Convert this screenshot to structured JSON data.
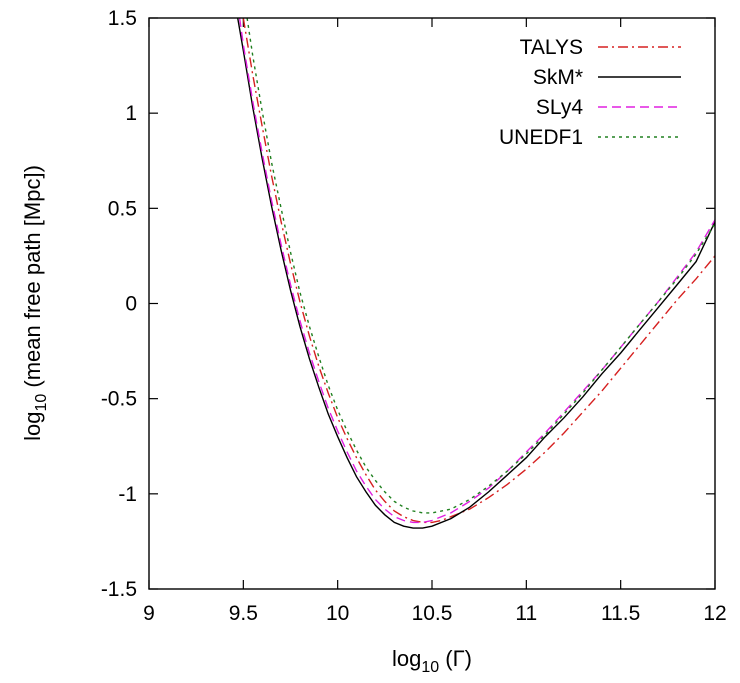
{
  "chart_data": {
    "type": "line",
    "xlabel": "log10 (Γ)",
    "ylabel": "log10 (mean free path [Mpc])",
    "xlim": [
      9,
      12
    ],
    "ylim": [
      -1.5,
      1.5
    ],
    "xticks": [
      "9",
      "9.5",
      "10",
      "10.5",
      "11",
      "11.5",
      "12"
    ],
    "yticks": [
      "-1.5",
      "-1",
      "-0.5",
      "0",
      "0.5",
      "1",
      "1.5"
    ],
    "legend_position": "top-right",
    "series": [
      {
        "name": "TALYS",
        "color": "#d62020",
        "dash": "dash-dot",
        "x": [
          9.5,
          9.55,
          9.6,
          9.65,
          9.7,
          9.75,
          9.8,
          9.85,
          9.9,
          9.95,
          10.0,
          10.05,
          10.1,
          10.15,
          10.2,
          10.25,
          10.3,
          10.35,
          10.4,
          10.45,
          10.5,
          10.55,
          10.6,
          10.7,
          10.8,
          10.9,
          11.0,
          11.1,
          11.2,
          11.3,
          11.4,
          11.5,
          11.6,
          11.7,
          11.8,
          11.9,
          12.0
        ],
        "y": [
          1.5,
          1.2,
          0.93,
          0.67,
          0.43,
          0.21,
          0.01,
          -0.17,
          -0.33,
          -0.47,
          -0.6,
          -0.71,
          -0.81,
          -0.9,
          -0.98,
          -1.04,
          -1.09,
          -1.12,
          -1.14,
          -1.15,
          -1.15,
          -1.14,
          -1.12,
          -1.08,
          -1.02,
          -0.95,
          -0.87,
          -0.78,
          -0.68,
          -0.57,
          -0.46,
          -0.34,
          -0.22,
          -0.1,
          0.02,
          0.13,
          0.25
        ]
      },
      {
        "name": "SkM*",
        "color": "#000000",
        "dash": "solid",
        "x": [
          9.47,
          9.5,
          9.55,
          9.6,
          9.65,
          9.7,
          9.75,
          9.8,
          9.85,
          9.9,
          9.95,
          10.0,
          10.05,
          10.1,
          10.15,
          10.2,
          10.25,
          10.3,
          10.35,
          10.4,
          10.45,
          10.5,
          10.6,
          10.7,
          10.8,
          10.9,
          11.0,
          11.1,
          11.2,
          11.3,
          11.4,
          11.5,
          11.6,
          11.7,
          11.8,
          11.9,
          12.0
        ],
        "y": [
          1.5,
          1.33,
          1.03,
          0.76,
          0.51,
          0.28,
          0.07,
          -0.12,
          -0.29,
          -0.44,
          -0.58,
          -0.7,
          -0.81,
          -0.91,
          -0.99,
          -1.06,
          -1.11,
          -1.15,
          -1.17,
          -1.18,
          -1.18,
          -1.17,
          -1.13,
          -1.07,
          -0.99,
          -0.9,
          -0.81,
          -0.7,
          -0.6,
          -0.49,
          -0.37,
          -0.26,
          -0.14,
          -0.02,
          0.1,
          0.22,
          0.43
        ]
      },
      {
        "name": "SLy4",
        "color": "#e020e0",
        "dash": "dashed",
        "x": [
          9.48,
          9.5,
          9.55,
          9.6,
          9.65,
          9.7,
          9.75,
          9.8,
          9.85,
          9.9,
          9.95,
          10.0,
          10.05,
          10.1,
          10.15,
          10.2,
          10.25,
          10.3,
          10.35,
          10.4,
          10.45,
          10.5,
          10.6,
          10.7,
          10.8,
          10.9,
          11.0,
          11.1,
          11.2,
          11.3,
          11.4,
          11.5,
          11.6,
          11.7,
          11.8,
          11.9,
          12.0
        ],
        "y": [
          1.5,
          1.36,
          1.06,
          0.79,
          0.54,
          0.31,
          0.1,
          -0.09,
          -0.26,
          -0.41,
          -0.55,
          -0.67,
          -0.78,
          -0.88,
          -0.96,
          -1.03,
          -1.08,
          -1.12,
          -1.14,
          -1.15,
          -1.15,
          -1.14,
          -1.1,
          -1.04,
          -0.97,
          -0.88,
          -0.78,
          -0.68,
          -0.57,
          -0.46,
          -0.35,
          -0.23,
          -0.11,
          0.01,
          0.14,
          0.27,
          0.44
        ]
      },
      {
        "name": "UNEDF1",
        "color": "#208020",
        "dash": "dotted",
        "x": [
          9.52,
          9.55,
          9.6,
          9.65,
          9.7,
          9.75,
          9.8,
          9.85,
          9.9,
          9.95,
          10.0,
          10.05,
          10.1,
          10.15,
          10.2,
          10.25,
          10.3,
          10.35,
          10.4,
          10.45,
          10.5,
          10.6,
          10.7,
          10.8,
          10.9,
          11.0,
          11.1,
          11.2,
          11.3,
          11.4,
          11.5,
          11.6,
          11.7,
          11.8,
          11.9,
          12.0
        ],
        "y": [
          1.5,
          1.3,
          1.01,
          0.74,
          0.5,
          0.27,
          0.06,
          -0.12,
          -0.28,
          -0.43,
          -0.56,
          -0.67,
          -0.77,
          -0.86,
          -0.93,
          -0.99,
          -1.04,
          -1.07,
          -1.09,
          -1.1,
          -1.1,
          -1.08,
          -1.03,
          -0.96,
          -0.88,
          -0.79,
          -0.69,
          -0.58,
          -0.47,
          -0.35,
          -0.23,
          -0.11,
          0.01,
          0.13,
          0.26,
          0.42
        ]
      }
    ]
  }
}
